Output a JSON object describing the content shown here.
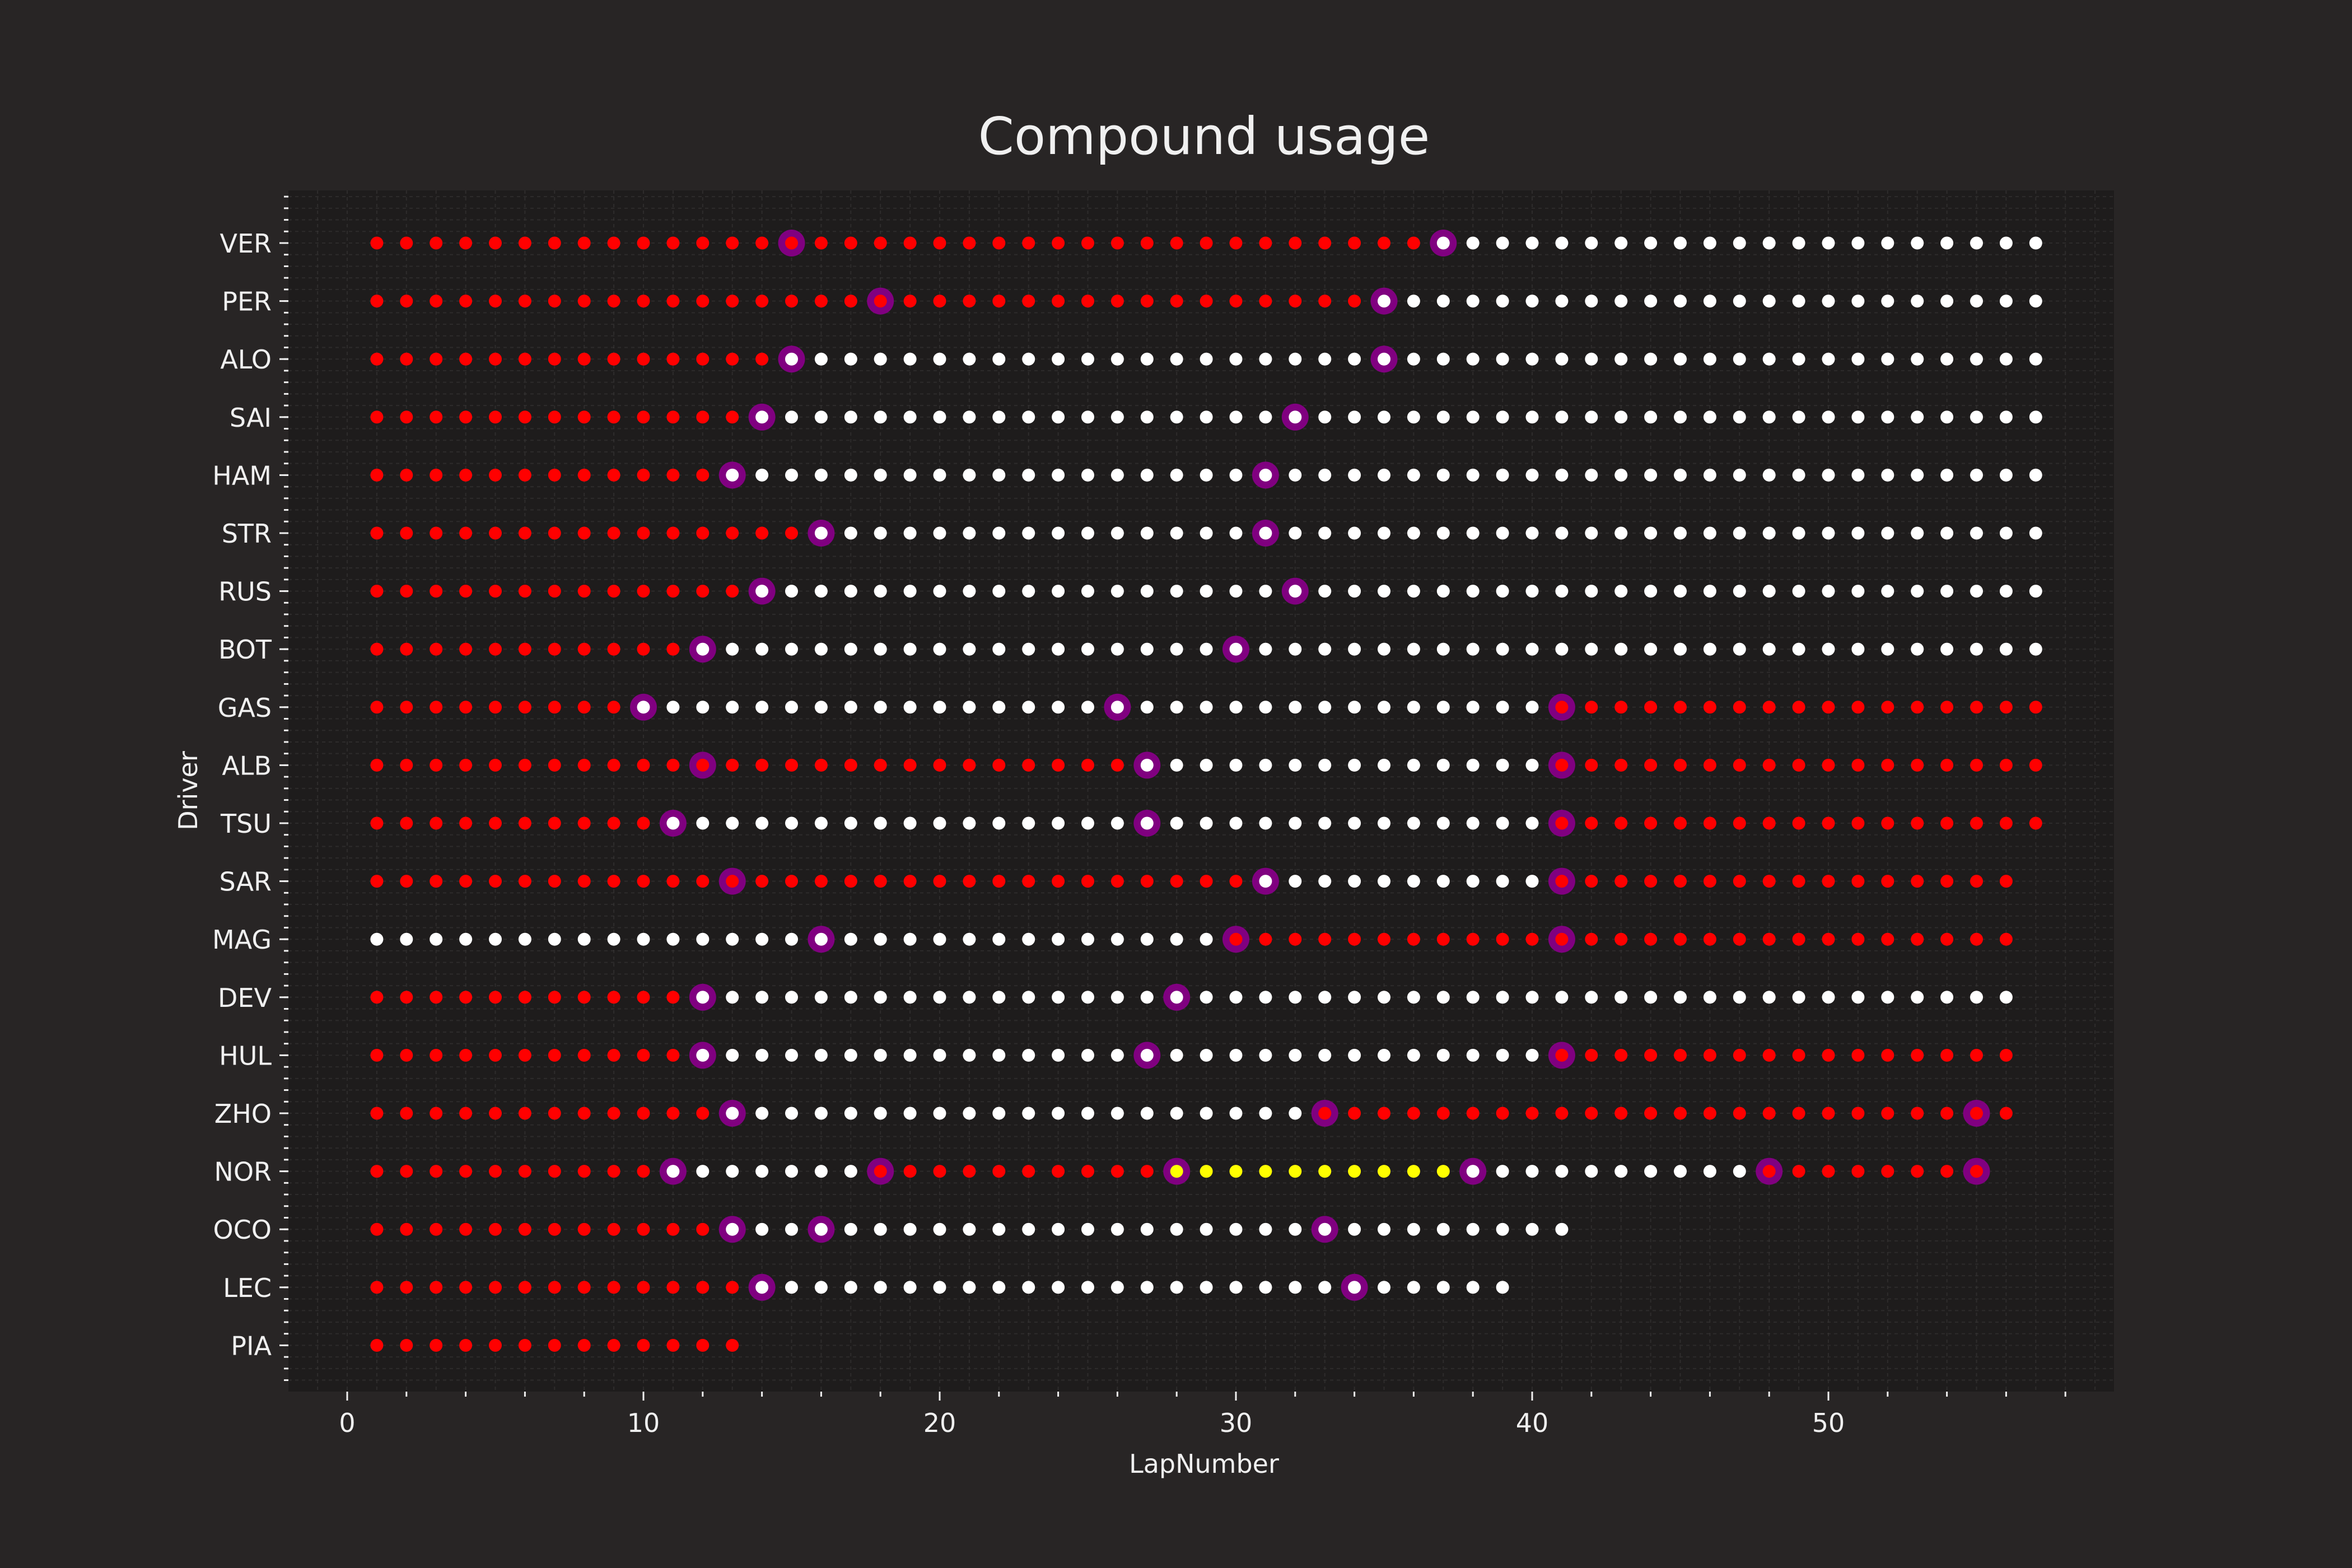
{
  "chart_data": {
    "type": "scatter",
    "title": "Compound usage",
    "xlabel": "LapNumber",
    "ylabel": "Driver",
    "xlim": [
      -2,
      59
    ],
    "xticks": [
      0,
      10,
      20,
      30,
      40,
      50
    ],
    "grid": true,
    "colors": {
      "figure_bg": "#282525",
      "axes_bg": "#1e1c1c",
      "text": "#f0f0f0",
      "grid": "#3a3838",
      "pit_marker": "#800080",
      "soft": "#ff0000",
      "hard": "#ffffff",
      "medium": "#ffff00"
    },
    "compound_colors": {
      "S": "#ff0000",
      "H": "#ffffff",
      "M": "#ffff00"
    },
    "drivers": [
      {
        "name": "VER",
        "total_laps": 57,
        "stints": [
          [
            "S",
            1,
            36
          ],
          [
            "H",
            37,
            57
          ]
        ],
        "pit_laps": [
          15,
          37
        ]
      },
      {
        "name": "PER",
        "total_laps": 57,
        "stints": [
          [
            "S",
            1,
            34
          ],
          [
            "H",
            35,
            57
          ]
        ],
        "pit_laps": [
          18,
          35
        ]
      },
      {
        "name": "ALO",
        "total_laps": 57,
        "stints": [
          [
            "S",
            1,
            14
          ],
          [
            "H",
            15,
            57
          ]
        ],
        "pit_laps": [
          15,
          35
        ]
      },
      {
        "name": "SAI",
        "total_laps": 57,
        "stints": [
          [
            "S",
            1,
            13
          ],
          [
            "H",
            14,
            57
          ]
        ],
        "pit_laps": [
          14,
          32
        ]
      },
      {
        "name": "HAM",
        "total_laps": 57,
        "stints": [
          [
            "S",
            1,
            12
          ],
          [
            "H",
            13,
            57
          ]
        ],
        "pit_laps": [
          13,
          31
        ]
      },
      {
        "name": "STR",
        "total_laps": 57,
        "stints": [
          [
            "S",
            1,
            15
          ],
          [
            "H",
            16,
            57
          ]
        ],
        "pit_laps": [
          16,
          31
        ]
      },
      {
        "name": "RUS",
        "total_laps": 57,
        "stints": [
          [
            "S",
            1,
            13
          ],
          [
            "H",
            14,
            57
          ]
        ],
        "pit_laps": [
          14,
          32
        ]
      },
      {
        "name": "BOT",
        "total_laps": 57,
        "stints": [
          [
            "S",
            1,
            11
          ],
          [
            "H",
            12,
            57
          ]
        ],
        "pit_laps": [
          12,
          30
        ]
      },
      {
        "name": "GAS",
        "total_laps": 57,
        "stints": [
          [
            "S",
            1,
            9
          ],
          [
            "H",
            10,
            40
          ],
          [
            "S",
            41,
            57
          ]
        ],
        "pit_laps": [
          10,
          26,
          41
        ]
      },
      {
        "name": "ALB",
        "total_laps": 57,
        "stints": [
          [
            "S",
            1,
            26
          ],
          [
            "H",
            27,
            40
          ],
          [
            "S",
            41,
            57
          ]
        ],
        "pit_laps": [
          12,
          27,
          41
        ]
      },
      {
        "name": "TSU",
        "total_laps": 57,
        "stints": [
          [
            "S",
            1,
            10
          ],
          [
            "H",
            11,
            40
          ],
          [
            "S",
            41,
            57
          ]
        ],
        "pit_laps": [
          11,
          27,
          41
        ]
      },
      {
        "name": "SAR",
        "total_laps": 56,
        "stints": [
          [
            "S",
            1,
            30
          ],
          [
            "H",
            31,
            40
          ],
          [
            "S",
            41,
            56
          ]
        ],
        "pit_laps": [
          13,
          31,
          41
        ]
      },
      {
        "name": "MAG",
        "total_laps": 56,
        "stints": [
          [
            "H",
            1,
            29
          ],
          [
            "S",
            30,
            56
          ]
        ],
        "pit_laps": [
          16,
          30,
          41
        ]
      },
      {
        "name": "DEV",
        "total_laps": 56,
        "stints": [
          [
            "S",
            1,
            11
          ],
          [
            "H",
            12,
            56
          ]
        ],
        "pit_laps": [
          12,
          28
        ]
      },
      {
        "name": "HUL",
        "total_laps": 56,
        "stints": [
          [
            "S",
            1,
            11
          ],
          [
            "H",
            12,
            40
          ],
          [
            "S",
            41,
            56
          ]
        ],
        "pit_laps": [
          12,
          27,
          41
        ]
      },
      {
        "name": "ZHO",
        "total_laps": 56,
        "stints": [
          [
            "S",
            1,
            12
          ],
          [
            "H",
            13,
            32
          ],
          [
            "S",
            33,
            56
          ]
        ],
        "pit_laps": [
          13,
          33,
          55
        ]
      },
      {
        "name": "NOR",
        "total_laps": 55,
        "stints": [
          [
            "S",
            1,
            10
          ],
          [
            "H",
            11,
            17
          ],
          [
            "S",
            18,
            27
          ],
          [
            "M",
            28,
            37
          ],
          [
            "H",
            38,
            47
          ],
          [
            "S",
            48,
            55
          ]
        ],
        "pit_laps": [
          11,
          18,
          28,
          38,
          48,
          55
        ]
      },
      {
        "name": "OCO",
        "total_laps": 41,
        "stints": [
          [
            "S",
            1,
            12
          ],
          [
            "H",
            13,
            41
          ]
        ],
        "pit_laps": [
          13,
          16,
          33
        ]
      },
      {
        "name": "LEC",
        "total_laps": 39,
        "stints": [
          [
            "S",
            1,
            13
          ],
          [
            "H",
            14,
            39
          ]
        ],
        "pit_laps": [
          14,
          34
        ]
      },
      {
        "name": "PIA",
        "total_laps": 13,
        "stints": [
          [
            "S",
            1,
            13
          ]
        ],
        "pit_laps": []
      }
    ]
  }
}
